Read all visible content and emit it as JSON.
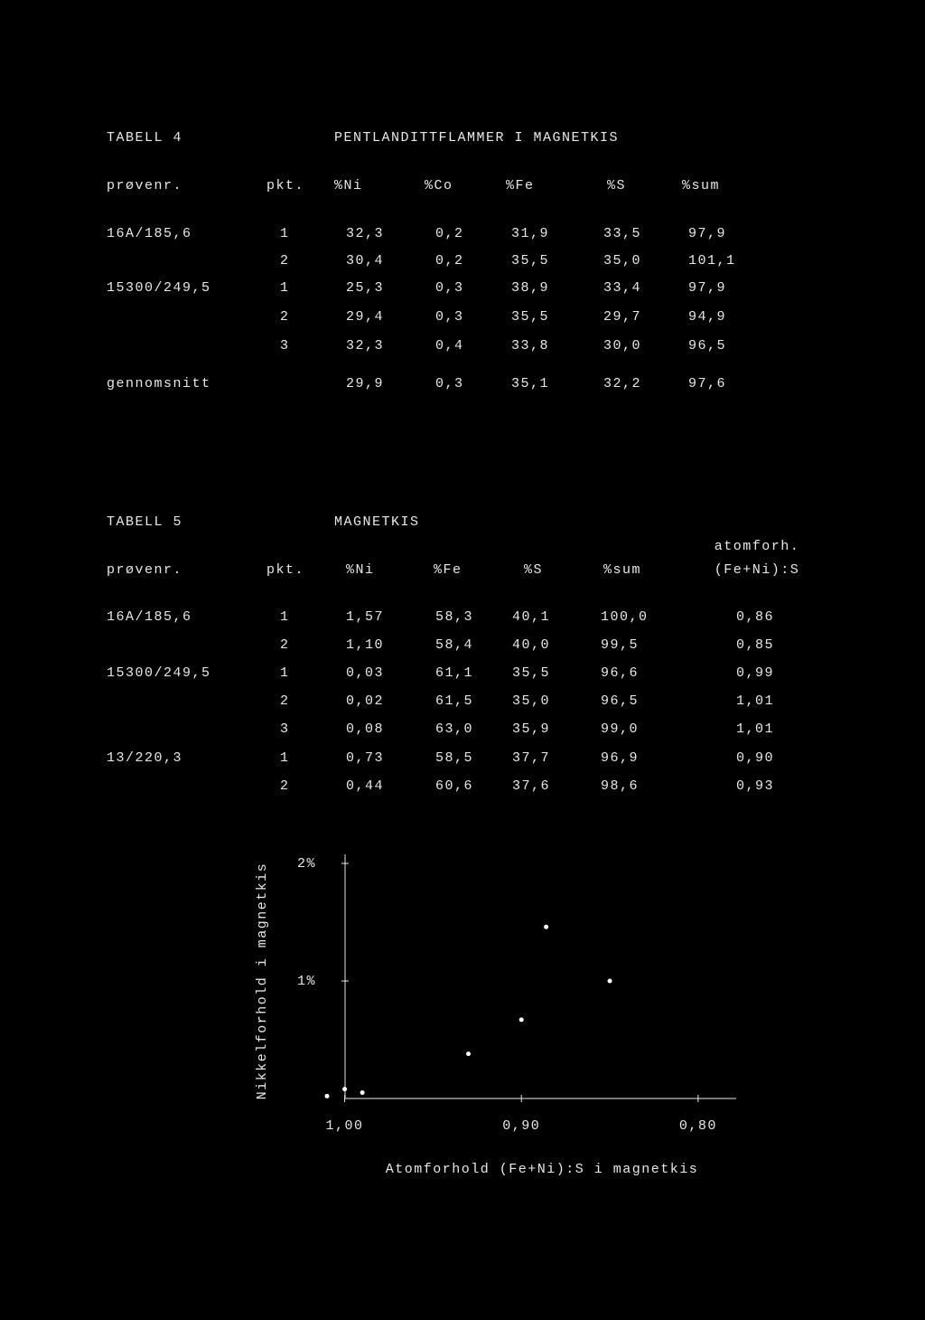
{
  "table4": {
    "label": "TABELL 4",
    "title": "PENTLANDITTFLAMMER I MAGNETKIS",
    "headers": [
      "prøvenr.",
      "pkt.",
      "%Ni",
      "%Co",
      "%Fe",
      "%S",
      "%sum"
    ],
    "rows": [
      [
        "16A/185,6",
        "1",
        "32,3",
        "0,2",
        "31,9",
        "33,5",
        "97,9"
      ],
      [
        null,
        "2",
        "30,4",
        "0,2",
        "35,5",
        "35,0",
        "101,1"
      ],
      [
        "15300/249,5",
        "1",
        "25,3",
        "0,3",
        "38,9",
        "33,4",
        "97,9"
      ],
      [
        null,
        "2",
        "29,4",
        "0,3",
        "35,5",
        "29,7",
        "94,9"
      ],
      [
        null,
        "3",
        "32,3",
        "0,4",
        "33,8",
        "30,0",
        "96,5"
      ],
      [
        "gennomsnitt",
        null,
        "29,9",
        "0,3",
        "35,1",
        "32,2",
        "97,6"
      ]
    ]
  },
  "table5": {
    "label": "TABELL 5",
    "title": "MAGNETKIS",
    "headers": [
      "prøvenr.",
      "pkt.",
      "%Ni",
      "%Fe",
      "%S",
      "%sum",
      [
        "atomforh.",
        "(Fe+Ni):S"
      ]
    ],
    "rows": [
      [
        "16A/185,6",
        "1",
        "1,57",
        "58,3",
        "40,1",
        "100,0",
        "0,86"
      ],
      [
        null,
        "2",
        "1,10",
        "58,4",
        "40,0",
        "99,5",
        "0,85"
      ],
      [
        "15300/249,5",
        "1",
        "0,03",
        "61,1",
        "35,5",
        "96,6",
        "0,99"
      ],
      [
        null,
        "2",
        "0,02",
        "61,5",
        "35,0",
        "96,5",
        "1,01"
      ],
      [
        null,
        "3",
        "0,08",
        "63,0",
        "35,9",
        "99,0",
        "1,01"
      ],
      [
        "13/220,3",
        "1",
        "0,73",
        "58,5",
        "37,7",
        "96,9",
        "0,90"
      ],
      [
        null,
        "2",
        "0,44",
        "60,6",
        "37,6",
        "98,6",
        "0,93"
      ]
    ]
  },
  "chart_data": {
    "type": "scatter",
    "x_label": "Atomforhold (Fe+Ni):S i magnetkis",
    "y_label": "Nikkelforhold i magnetkis",
    "x": [
      0.886,
      0.85,
      0.9,
      0.93,
      1.0,
      0.99,
      1.01
    ],
    "values": [
      1.46,
      1.0,
      0.67,
      0.38,
      0.08,
      0.05,
      0.02
    ],
    "color": "#ffffff",
    "xlim": [
      1.01,
      0.78
    ],
    "ylim": [
      0,
      2.1
    ],
    "xticks": [
      {
        "value": 1.0,
        "label": "1,00"
      },
      {
        "value": 0.9,
        "label": "0,90"
      },
      {
        "value": 0.8,
        "label": "0,80"
      }
    ],
    "yticks": [
      {
        "value": 1,
        "label": "1%"
      },
      {
        "value": 2,
        "label": "2%"
      }
    ]
  }
}
